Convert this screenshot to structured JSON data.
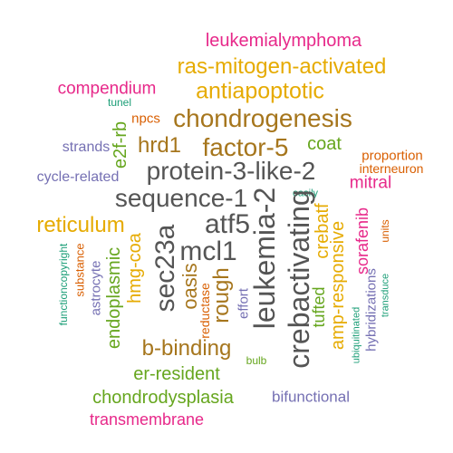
{
  "palette": {
    "magenta": "#e7298a",
    "gold": "#e6ab02",
    "brown": "#a6761d",
    "grey": "#555555",
    "green": "#66a61e",
    "teal": "#1b9e77",
    "purple": "#7570b3",
    "orange": "#d95f02"
  },
  "words": [
    {
      "text": "leukemialymphoma",
      "color": "#e7298a"
    },
    {
      "text": "ras-mitogen-activated",
      "color": "#e6ab02"
    },
    {
      "text": "compendium",
      "color": "#e7298a"
    },
    {
      "text": "antiapoptotic",
      "color": "#e6ab02"
    },
    {
      "text": "tunel",
      "color": "#1b9e77"
    },
    {
      "text": "npcs",
      "color": "#d95f02"
    },
    {
      "text": "chondrogenesis",
      "color": "#a6761d"
    },
    {
      "text": "e2f-rb",
      "color": "#66a61e"
    },
    {
      "text": "strands",
      "color": "#7570b3"
    },
    {
      "text": "hrd1",
      "color": "#a6761d"
    },
    {
      "text": "factor-5",
      "color": "#a6761d"
    },
    {
      "text": "coat",
      "color": "#66a61e"
    },
    {
      "text": "proportion",
      "color": "#d95f02"
    },
    {
      "text": "interneuron",
      "color": "#d95f02"
    },
    {
      "text": "cycle-related",
      "color": "#7570b3"
    },
    {
      "text": "protein-3-like-2",
      "color": "#555555"
    },
    {
      "text": "mitral",
      "color": "#e7298a"
    },
    {
      "text": "sequence-1",
      "color": "#555555"
    },
    {
      "text": "easily",
      "color": "#1b9e77"
    },
    {
      "text": "leukemia-2",
      "color": "#555555"
    },
    {
      "text": "crebactivating",
      "color": "#555555"
    },
    {
      "text": "crebatf",
      "color": "#e6ab02"
    },
    {
      "text": "reticulum",
      "color": "#e6ab02"
    },
    {
      "text": "atf5",
      "color": "#555555"
    },
    {
      "text": "sec23a",
      "color": "#555555"
    },
    {
      "text": "mcl1",
      "color": "#555555"
    },
    {
      "text": "sorafenib",
      "color": "#e7298a"
    },
    {
      "text": "units",
      "color": "#d95f02"
    },
    {
      "text": "amp-responsive",
      "color": "#e6ab02"
    },
    {
      "text": "tufted",
      "color": "#66a61e"
    },
    {
      "text": "hmg-coa",
      "color": "#e6ab02"
    },
    {
      "text": "oasis",
      "color": "#a6761d"
    },
    {
      "text": "rough",
      "color": "#a6761d"
    },
    {
      "text": "effort",
      "color": "#7570b3"
    },
    {
      "text": "reductase",
      "color": "#d95f02"
    },
    {
      "text": "substance",
      "color": "#d95f02"
    },
    {
      "text": "astrocyte",
      "color": "#7570b3"
    },
    {
      "text": "functioncopyright",
      "color": "#1b9e77"
    },
    {
      "text": "endoplasmic",
      "color": "#66a61e"
    },
    {
      "text": "hybridizations",
      "color": "#7570b3"
    },
    {
      "text": "ubiquitinated",
      "color": "#1b9e77"
    },
    {
      "text": "transduce",
      "color": "#1b9e77"
    },
    {
      "text": "b-binding",
      "color": "#a6761d"
    },
    {
      "text": "bulb",
      "color": "#66a61e"
    },
    {
      "text": "er-resident",
      "color": "#66a61e"
    },
    {
      "text": "chondrodysplasia",
      "color": "#66a61e"
    },
    {
      "text": "bifunctional",
      "color": "#7570b3"
    },
    {
      "text": "transmembrane",
      "color": "#e7298a"
    }
  ]
}
